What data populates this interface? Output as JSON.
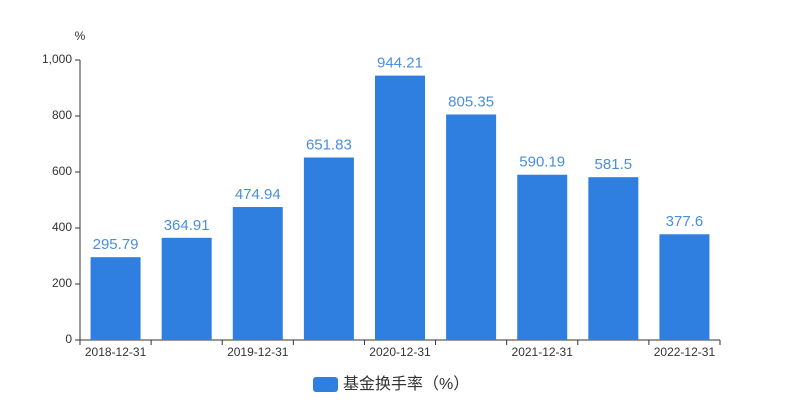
{
  "chart_data": {
    "type": "bar",
    "y_label": "%",
    "categories": [
      "2018-12-31",
      null,
      "2019-12-31",
      null,
      "2020-12-31",
      null,
      "2021-12-31",
      null,
      "2022-12-31"
    ],
    "series": [
      {
        "name": "基金换手率（%）",
        "color": "#2e7fe0",
        "values": [
          295.79,
          364.91,
          474.94,
          651.83,
          944.21,
          805.35,
          590.19,
          581.5,
          377.6
        ]
      }
    ],
    "value_label_color": "#4a8ee0",
    "ylim": [
      0,
      1000
    ],
    "yticks": [
      0,
      200,
      400,
      600,
      800,
      {
        "value": 1000,
        "label": "1,000"
      }
    ],
    "grid": false
  }
}
